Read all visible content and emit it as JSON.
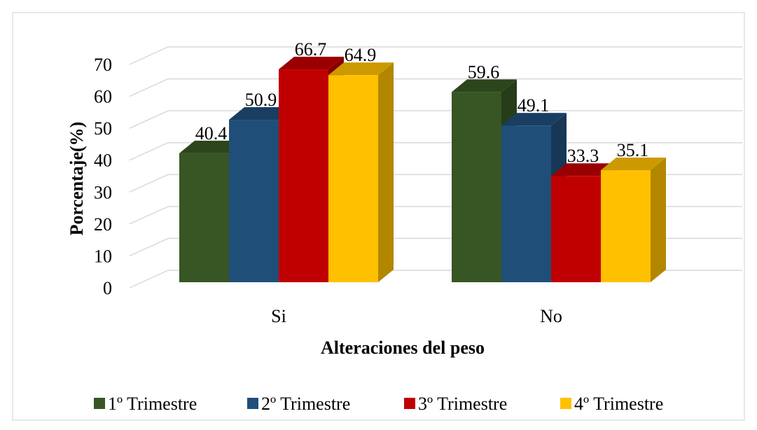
{
  "chart_data": {
    "type": "bar3d",
    "x_label": "Alteraciones del peso",
    "y_label": "Porcentaje(%)",
    "categories": [
      "Si",
      "No"
    ],
    "series": [
      {
        "name": "1º Trimestre",
        "color": "#375623",
        "values": [
          40.4,
          59.6
        ]
      },
      {
        "name": "2º Trimestre",
        "color": "#1f4e79",
        "values": [
          50.9,
          49.1
        ]
      },
      {
        "name": "3º Trimestre",
        "color": "#c00000",
        "values": [
          66.7,
          33.3
        ]
      },
      {
        "name": "4º Trimestre",
        "color": "#ffc000",
        "values": [
          64.9,
          35.1
        ]
      }
    ],
    "ylim": [
      0,
      70
    ],
    "yticks": [
      0,
      10,
      20,
      30,
      40,
      50,
      60,
      70
    ],
    "grid": true,
    "legend": "bottom"
  }
}
